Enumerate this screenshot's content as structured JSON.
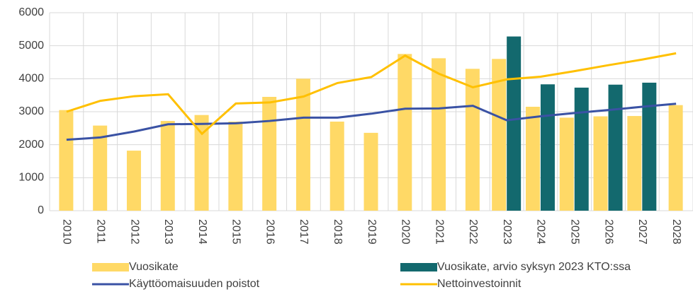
{
  "chart_data": {
    "type": "bar-line",
    "categories": [
      "2010",
      "2011",
      "2012",
      "2013",
      "2014",
      "2015",
      "2016",
      "2017",
      "2018",
      "2019",
      "2020",
      "2021",
      "2022",
      "2023",
      "2024",
      "2025",
      "2026",
      "2027",
      "2028"
    ],
    "series": [
      {
        "name": "Vuosikate",
        "type": "bar",
        "color": "#ffd966",
        "values": [
          3050,
          2580,
          1820,
          2720,
          2900,
          2700,
          3450,
          4000,
          2700,
          2360,
          4750,
          4620,
          4300,
          4600,
          3150,
          2820,
          2860,
          2870,
          3200
        ]
      },
      {
        "name": "Vuosikate, arvio syksyn 2023 KTO:ssa",
        "type": "bar",
        "color": "#13696e",
        "values": [
          null,
          null,
          null,
          null,
          null,
          null,
          null,
          null,
          null,
          null,
          null,
          null,
          null,
          5280,
          3830,
          3730,
          3820,
          3880,
          null
        ]
      },
      {
        "name": "Käyttöomaisuuden poistot",
        "type": "line",
        "color": "#3a52a4",
        "values": [
          2150,
          2220,
          2400,
          2620,
          2630,
          2650,
          2720,
          2820,
          2820,
          2940,
          3090,
          3100,
          3180,
          2740,
          2860,
          2960,
          3050,
          3150,
          3240
        ]
      },
      {
        "name": "Nettoinvestoinnit",
        "type": "line",
        "color": "#ffc000",
        "values": [
          3000,
          3330,
          3470,
          3530,
          2330,
          3250,
          3280,
          3460,
          3870,
          4050,
          4700,
          4150,
          3740,
          3980,
          4060,
          4230,
          4410,
          4580,
          4770
        ]
      }
    ],
    "ylim": [
      0,
      6000
    ],
    "yticks": [
      0,
      1000,
      2000,
      3000,
      4000,
      5000,
      6000
    ],
    "grid": true,
    "legend": "bottom"
  }
}
